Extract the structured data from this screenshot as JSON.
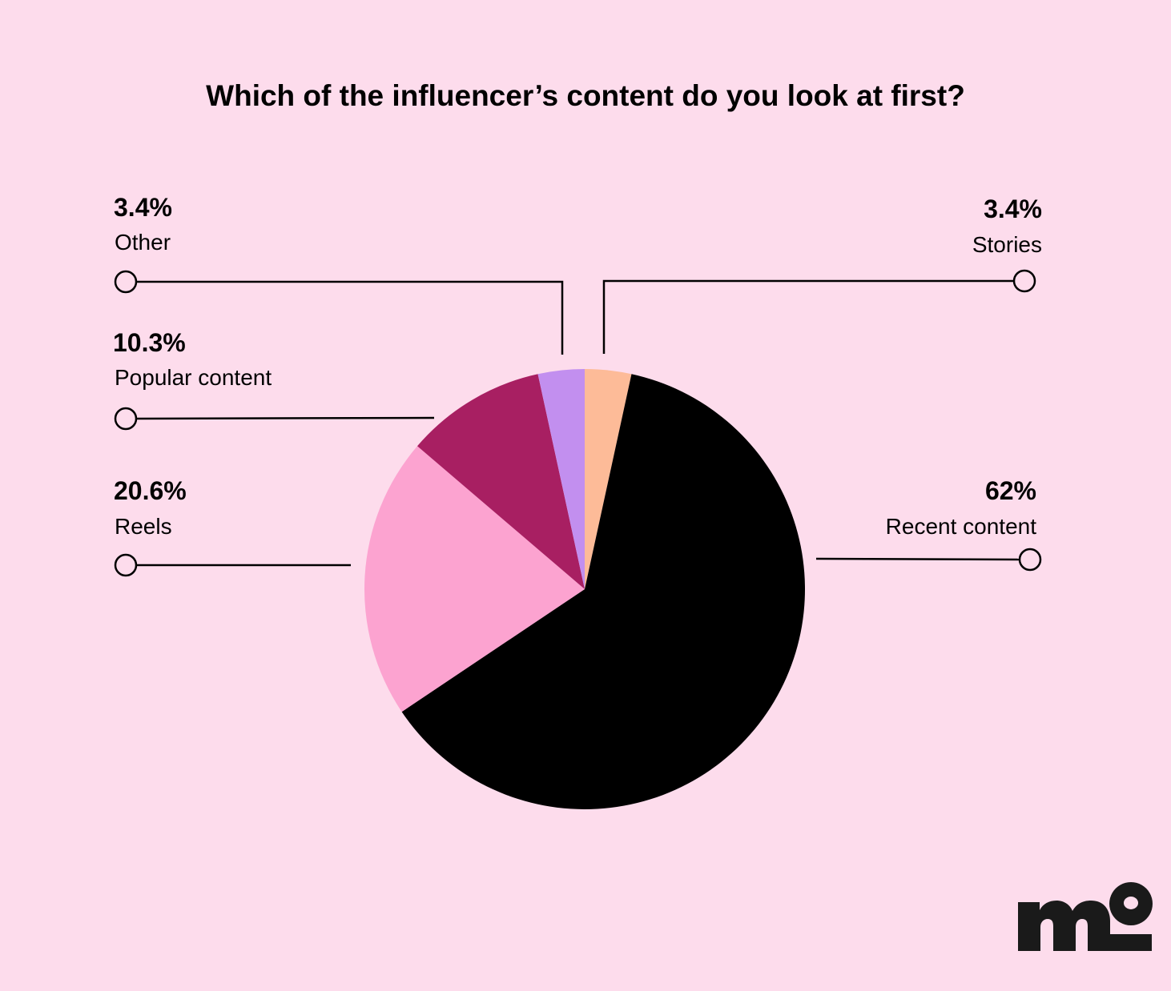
{
  "chart_data": {
    "type": "pie",
    "title": "Which of the influencer’s content do you look at first?",
    "slices": [
      {
        "label": "Stories",
        "value_label": "3.4%",
        "value": 3.4,
        "color": "#fdbb98"
      },
      {
        "label": "Recent content",
        "value_label": "62%",
        "value": 62.0,
        "color": "#000000"
      },
      {
        "label": "Reels",
        "value_label": "20.6%",
        "value": 20.6,
        "color": "#fca3d0"
      },
      {
        "label": "Popular content",
        "value_label": "10.3%",
        "value": 10.3,
        "color": "#a81f62"
      },
      {
        "label": "Other",
        "value_label": "3.4%",
        "value": 3.4,
        "color": "#c28fef"
      }
    ],
    "start_angle_deg": 0,
    "direction": "clockwise"
  },
  "logo": {
    "text": "mo",
    "color": "#1a1a1a"
  }
}
